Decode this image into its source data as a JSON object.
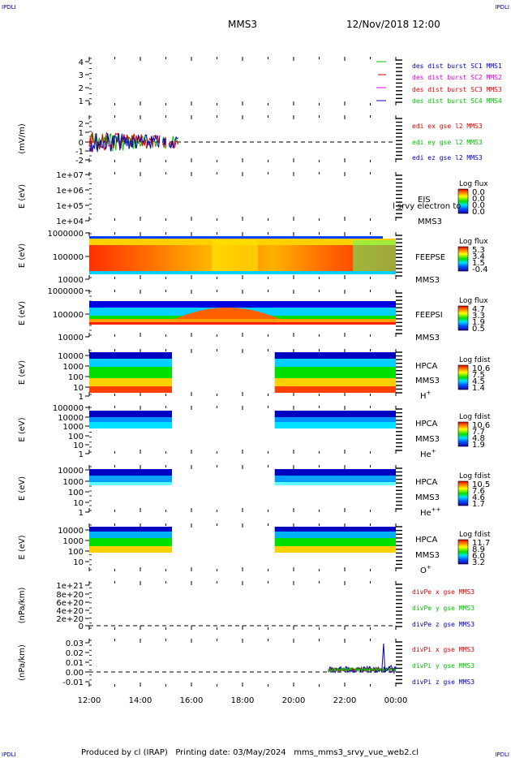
{
  "page": {
    "corner_tl": "IPDLI",
    "corner_tr": "IPDLI",
    "corner_bl": "IPDLI",
    "corner_br": "IPDLI",
    "spacecraft": "MMS3",
    "date_time": "12/Nov/2018 12:00",
    "footer": "Produced by cl (IRAP)   Printing date: 03/May/2024   mms_mms3_srvy_vue_web2.cl"
  },
  "colors": {
    "red": "#e00000",
    "green": "#00c000",
    "blue": "#0000c0",
    "magenta": "#e000e0"
  },
  "chart_data": {
    "type": "multi-panel",
    "x_tick_labels": [
      "12:00",
      "14:00",
      "16:00",
      "18:00",
      "20:00",
      "22:00",
      "00:00"
    ],
    "panels": [
      {
        "id": "burst",
        "type": "line",
        "ylabel": "",
        "yticks": [
          "4",
          "3",
          "2",
          "1"
        ],
        "legend": [
          {
            "text": "des dist burst SC1 MMS1",
            "color": "#0000c0"
          },
          {
            "text": "des dist burst SC2 MMS2",
            "color": "#e000e0"
          },
          {
            "text": "des dist burst SC3 MMS3",
            "color": "#e00000"
          },
          {
            "text": "des dist burst SC4 MMS4",
            "color": "#00c000"
          }
        ]
      },
      {
        "id": "edi",
        "type": "line",
        "ylabel": "(mV/m)",
        "yticks": [
          "2",
          "1",
          "0",
          "-1",
          "-2"
        ],
        "legend": [
          {
            "text": "edi ex gse l2 MMS3",
            "color": "#e00000"
          },
          {
            "text": "edi ey gse l2 MMS3",
            "color": "#00c000"
          },
          {
            "text": "edi ez gse l2 MMS3",
            "color": "#0000c0"
          }
        ]
      },
      {
        "id": "eis",
        "type": "heatmap",
        "ylabel": "E (eV)",
        "yticks": [
          "1e+07",
          "1e+06",
          "1e+05",
          "1e+04"
        ],
        "side_labels": [
          "EIS",
          "MMS3"
        ],
        "overlap_text": "l srvy electron to",
        "cbar_title": "Log flux",
        "cbar_ticks": [
          "0.0",
          "0.0",
          "0.0",
          "0.0"
        ]
      },
      {
        "id": "feepse",
        "type": "heatmap",
        "ylabel": "E (eV)",
        "yticks": [
          "1000000",
          "100000",
          "10000"
        ],
        "side_labels": [
          "FEEPSE",
          "MMS3"
        ],
        "cbar_title": "Log flux",
        "cbar_ticks": [
          "5.3",
          "3.4",
          "1.5",
          "-0.4"
        ]
      },
      {
        "id": "feepsi",
        "type": "heatmap",
        "ylabel": "E (eV)",
        "yticks": [
          "1000000",
          "100000",
          "10000"
        ],
        "side_labels": [
          "FEEPSI",
          "MMS3"
        ],
        "cbar_title": "Log flux",
        "cbar_ticks": [
          "4.7",
          "3.3",
          "1.9",
          "0.5"
        ]
      },
      {
        "id": "hpca_h",
        "type": "heatmap",
        "ylabel": "E (eV)",
        "yticks": [
          "10000",
          "1000",
          "100",
          "10",
          "1"
        ],
        "side_labels": [
          "HPCA",
          "MMS3"
        ],
        "species": "H",
        "species_sup": "+",
        "cbar_title": "Log fdist",
        "cbar_ticks": [
          "10.6",
          "7.5",
          "4.5",
          "1.4"
        ]
      },
      {
        "id": "hpca_he",
        "type": "heatmap",
        "ylabel": "E (eV)",
        "yticks": [
          "100000",
          "10000",
          "1000",
          "100",
          "10",
          "1"
        ],
        "side_labels": [
          "HPCA",
          "MMS3"
        ],
        "species": "He",
        "species_sup": "+",
        "cbar_title": "Log fdist",
        "cbar_ticks": [
          "10.6",
          "7.7",
          "4.8",
          "1.9"
        ]
      },
      {
        "id": "hpca_he2",
        "type": "heatmap",
        "ylabel": "E (eV)",
        "yticks": [
          "10000",
          "1000",
          "100",
          "10",
          "1"
        ],
        "side_labels": [
          "HPCA",
          "MMS3"
        ],
        "species": "He",
        "species_sup": "++",
        "cbar_title": "Log fdist",
        "cbar_ticks": [
          "10.5",
          "7.6",
          "4.6",
          "1.7"
        ]
      },
      {
        "id": "hpca_o",
        "type": "heatmap",
        "ylabel": "E (eV)",
        "yticks": [
          "10000",
          "1000",
          "100",
          "10"
        ],
        "side_labels": [
          "HPCA",
          "MMS3"
        ],
        "species": "O",
        "species_sup": "+",
        "cbar_title": "Log fdist",
        "cbar_ticks": [
          "11.7",
          "8.9",
          "6.0",
          "3.2"
        ]
      },
      {
        "id": "divpe",
        "type": "line",
        "ylabel": "(nPa/km)",
        "yticks": [
          "1e+21",
          "8e+20",
          "6e+20",
          "4e+20",
          "2e+20",
          "0"
        ],
        "legend": [
          {
            "text": "divPe x gse MMS3",
            "color": "#e00000"
          },
          {
            "text": "divPe y gse MMS3",
            "color": "#00c000"
          },
          {
            "text": "divPe z gse MMS3",
            "color": "#0000c0"
          }
        ]
      },
      {
        "id": "divpi",
        "type": "line",
        "ylabel": "(nPa/km)",
        "yticks": [
          "0.03",
          "0.02",
          "0.01",
          "0.00",
          "-0.01"
        ],
        "legend": [
          {
            "text": "divPi x gse MMS3",
            "color": "#e00000"
          },
          {
            "text": "divPi y gse MMS3",
            "color": "#00c000"
          },
          {
            "text": "divPi z gse MMS3",
            "color": "#0000c0"
          }
        ]
      }
    ]
  }
}
